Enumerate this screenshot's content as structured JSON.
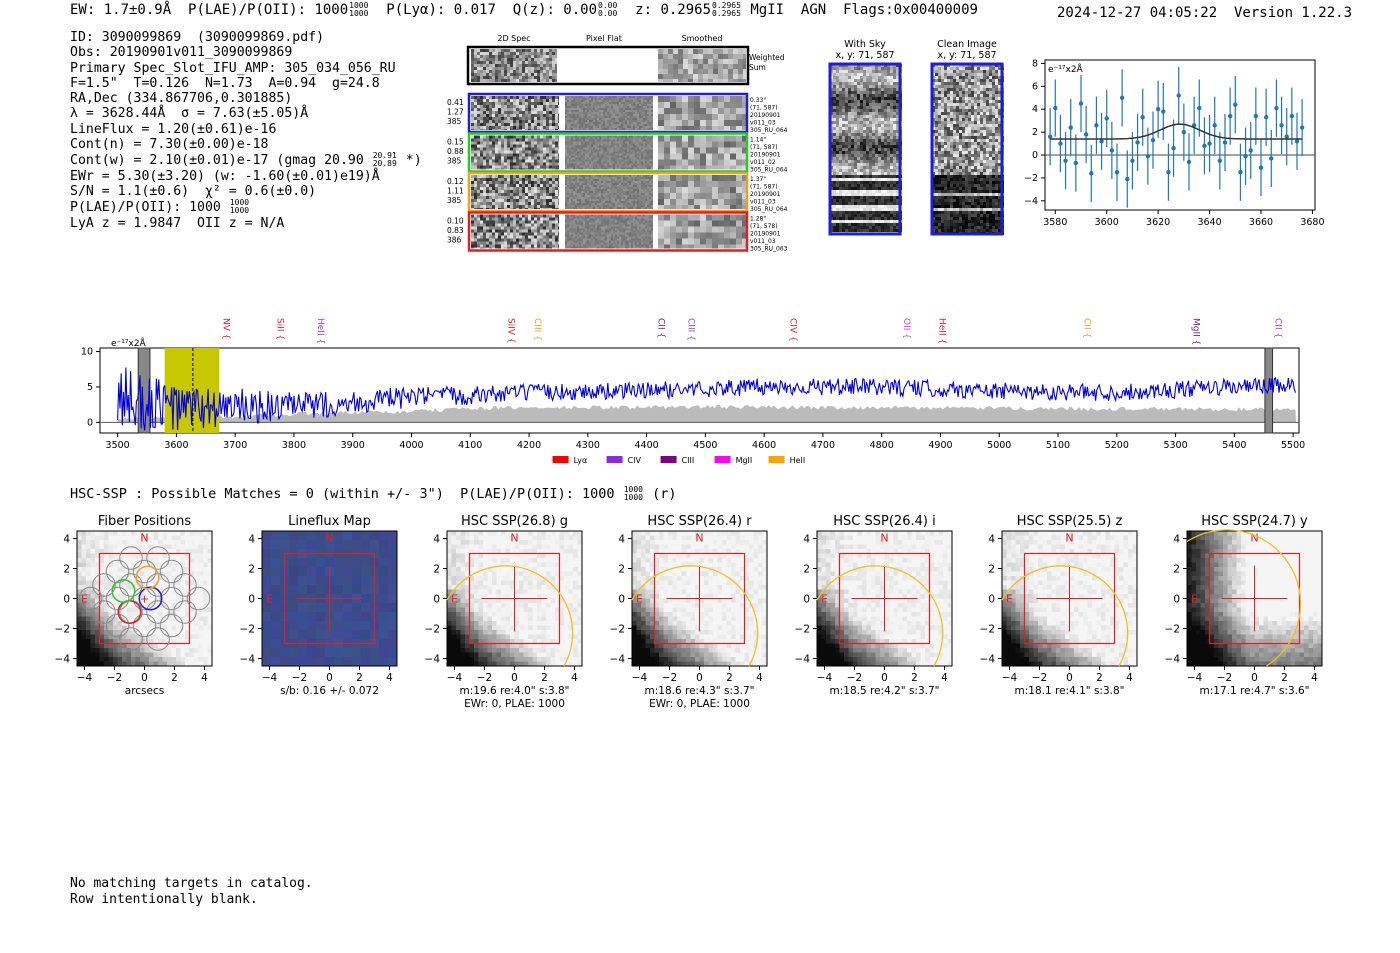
{
  "header": {
    "ew": "EW: 1.7±0.9Å",
    "plae_label": "P(LAE)/P(OII): 1000",
    "plae_hi": "1000",
    "plae_lo": "1000",
    "plya": "P(Lyα): 0.017",
    "qz": "Q(z): 0.00",
    "qz_hi": "0.00",
    "qz_lo": "0.00",
    "z": "z: 0.2965",
    "z_hi": "0.2965",
    "z_lo": "0.2965",
    "tags": "MgII  AGN  Flags:0x00400009",
    "timestamp": "2024-12-27 04:05:22  Version 1.22.3"
  },
  "info": {
    "id": "ID: 3090099869  (3090099869.pdf)",
    "obs": "Obs: 20190901v011_3090099869",
    "slot": "Primary Spec_Slot_IFU_AMP: 305_034_056_RU",
    "params": "F=1.5\"  T=0.126  N=1.73  A=0.94  g=24.8",
    "radec": "RA,Dec (334.867706,0.301885)",
    "lambda": "λ = 3628.44Å  σ = 7.63(±5.05)Å",
    "lineflux": "LineFlux = 1.20(±0.61)e-16",
    "contn": "Cont(n) = 7.30(±0.00)e-18",
    "contw": "Cont(w) = 2.10(±0.01)e-17 (gmag 20.90",
    "gmag_hi": "20.91",
    "gmag_lo": "20.89",
    "contw_end": "*)",
    "ewr": "EWr = 5.30(±3.20) (w: -1.60(±0.01)e19)Å",
    "sn": "S/N = 1.1(±0.6)  χ² = 0.6(±0.0)",
    "plae": "P(LAE)/P(OII): 1000",
    "plae_hi": "1000",
    "plae_lo": "1000",
    "lya_z": "LyA z = 1.9847  OII z = N/A"
  },
  "cutouts": {
    "col_labels": [
      "2D Spec",
      "Pixel Flat",
      "Smoothed"
    ],
    "weighted_label": "Weighted Sum",
    "colors": [
      "#000000",
      "#1f1fd0",
      "#22cc22",
      "#f0a020",
      "#e02020"
    ],
    "rows": [
      {
        "left": [
          "0.41",
          "1.27",
          "385"
        ],
        "right": [
          "0.33\"",
          "(71, 587)",
          "20190901",
          "v011_03",
          "305_RU_064"
        ]
      },
      {
        "left": [
          "0.15",
          "0.88",
          "385"
        ],
        "right": [
          "1.14\"",
          "(71, 587)",
          "20190901",
          "v011_02",
          "305_RU_064"
        ]
      },
      {
        "left": [
          "0.12",
          "1.11",
          "385"
        ],
        "right": [
          "1.37\"",
          "(71, 587)",
          "20190901",
          "v011_03",
          "305_RU_064"
        ]
      },
      {
        "left": [
          "0.10",
          "0.83",
          "386"
        ],
        "right": [
          "1.28\"",
          "(71, 578)",
          "20190901",
          "v011_03",
          "305_RU_063"
        ]
      }
    ],
    "with_sky": {
      "title": "With Sky",
      "xy": "x, y: 71, 587"
    },
    "clean": {
      "title": "Clean Image",
      "xy": "x, y: 71, 587"
    }
  },
  "hsc": {
    "line": "HSC-SSP : Possible Matches = 0 (within +/- 3\")  P(LAE)/P(OII): 1000",
    "plae_hi": "1000",
    "plae_lo": "1000",
    "band": "(r)"
  },
  "footer": {
    "line1": "No matching targets in catalog.",
    "line2": "Row intentionally blank."
  },
  "chart_data": [
    {
      "type": "line",
      "id": "line-fit",
      "title": "",
      "ylabel_note": "e⁻¹⁷x2Å",
      "xlim": [
        3576,
        3681
      ],
      "ylim": [
        -4.8,
        8.3
      ],
      "xticks": [
        3580,
        3600,
        3620,
        3640,
        3660,
        3680
      ],
      "yticks": [
        -4,
        -2,
        0,
        2,
        4,
        6,
        8
      ],
      "series": [
        {
          "name": "data",
          "x": [
            3578,
            3580,
            3582,
            3584,
            3586,
            3588,
            3590,
            3592,
            3594,
            3596,
            3598,
            3600,
            3602,
            3604,
            3606,
            3608,
            3610,
            3612,
            3614,
            3616,
            3618,
            3620,
            3622,
            3624,
            3626,
            3628,
            3630,
            3632,
            3634,
            3636,
            3638,
            3640,
            3642,
            3644,
            3646,
            3648,
            3650,
            3652,
            3654,
            3656,
            3658,
            3660,
            3662,
            3664,
            3666,
            3668,
            3670,
            3672,
            3674,
            3676
          ],
          "values": [
            1.6,
            4.1,
            1.0,
            -0.5,
            2.4,
            -0.7,
            4.5,
            1.8,
            -1.6,
            2.6,
            1.2,
            3.2,
            0.4,
            -1.5,
            5.0,
            -2.1,
            -0.5,
            1.1,
            3.3,
            -0.1,
            1.3,
            4.0,
            3.8,
            -1.5,
            0.6,
            5.2,
            2.0,
            -0.6,
            2.6,
            4.1,
            0.8,
            1.0,
            2.6,
            -0.5,
            1.1,
            3.4,
            4.4,
            -1.5,
            -0.1,
            0.4,
            3.4,
            -1.1,
            3.3,
            -0.3,
            4.1,
            2.6,
            1.6,
            3.4,
            1.2,
            2.4
          ],
          "err": [
            2.5,
            2.5,
            2.5,
            2.5,
            2.5,
            2.5,
            2.5,
            2.5,
            2.5,
            2.5,
            2.5,
            2.5,
            2.5,
            2.5,
            2.5,
            2.5,
            2.5,
            2.5,
            2.5,
            2.5,
            2.5,
            2.5,
            2.5,
            2.5,
            2.5,
            2.5,
            2.5,
            2.5,
            2.5,
            2.5,
            2.5,
            2.5,
            2.5,
            2.5,
            2.5,
            2.5,
            2.5,
            2.5,
            2.5,
            2.5,
            2.5,
            2.5,
            2.5,
            2.5,
            2.5,
            2.5,
            2.5,
            2.5,
            2.5,
            2.5
          ]
        },
        {
          "name": "fit",
          "continuum": 1.4,
          "amplitude": 1.3,
          "center": 3628.44,
          "sigma": 7.63
        }
      ]
    },
    {
      "type": "line",
      "id": "full-spectrum",
      "ylabel_note": "e⁻¹⁷x2Å",
      "xlim": [
        3470,
        5510
      ],
      "ylim": [
        -1.5,
        10.5
      ],
      "xticks": [
        3500,
        3600,
        3700,
        3800,
        3900,
        4000,
        4100,
        4200,
        4300,
        4400,
        4500,
        4600,
        4700,
        4800,
        4900,
        5000,
        5100,
        5200,
        5300,
        5400,
        5500
      ],
      "yticks": [
        0,
        5,
        10
      ],
      "highlight_band": [
        3580,
        3673
      ],
      "highlight_line": 3628,
      "masked_bands": [
        [
          3535,
          3555
        ],
        [
          5452,
          5465
        ]
      ],
      "line_markers": [
        {
          "label": "NV",
          "x": 3675,
          "color": "#e02020"
        },
        {
          "label": "SiII",
          "x": 3767,
          "color": "#e02020"
        },
        {
          "label": "HeII",
          "x": 3836,
          "color": "#a040e0"
        },
        {
          "label": "SiIV",
          "x": 4160,
          "color": "#e02020"
        },
        {
          "label": "CIII",
          "x": 4205,
          "color": "#f0a020"
        },
        {
          "label": "CII",
          "x": 4415,
          "color": "#7020a0"
        },
        {
          "label": "CIII",
          "x": 4466,
          "color": "#a040e0"
        },
        {
          "label": "CIV",
          "x": 4640,
          "color": "#e02020"
        },
        {
          "label": "OII",
          "x": 4833,
          "color": "#e040e0"
        },
        {
          "label": "HeII",
          "x": 4893,
          "color": "#e02020"
        },
        {
          "label": "CII",
          "x": 5140,
          "color": "#f0a020"
        },
        {
          "label": "MgII",
          "x": 5325,
          "color": "#7020a0"
        },
        {
          "label": "CII",
          "x": 5465,
          "color": "#a040e0"
        }
      ],
      "legend": [
        {
          "label": "Lyα",
          "color": "#ff0000"
        },
        {
          "label": "CIV",
          "color": "#8a2be2"
        },
        {
          "label": "CIII",
          "color": "#800080"
        },
        {
          "label": "MgII",
          "color": "#ff00ff"
        },
        {
          "label": "HeII",
          "color": "#ffa500"
        }
      ],
      "series": [
        {
          "name": "flux",
          "color": "#0000dd",
          "x_start": 3500,
          "x_end": 5505,
          "step": 2,
          "envelope": [
            [
              3500,
              3.5
            ],
            [
              3600,
              2.0
            ],
            [
              3800,
              2.2
            ],
            [
              4000,
              3.5
            ],
            [
              4200,
              4.2
            ],
            [
              4400,
              4.5
            ],
            [
              4600,
              5.0
            ],
            [
              4800,
              5.0
            ],
            [
              5000,
              4.4
            ],
            [
              5200,
              4.2
            ],
            [
              5400,
              5.0
            ],
            [
              5505,
              5.2
            ]
          ],
          "noise_amp": [
            [
              3500,
              5.0
            ],
            [
              3600,
              3.5
            ],
            [
              3800,
              2.0
            ],
            [
              4000,
              1.5
            ],
            [
              4200,
              1.2
            ],
            [
              5505,
              1.2
            ]
          ]
        },
        {
          "name": "sky",
          "color": "#bbbbbb",
          "level": [
            [
              3500,
              0.5
            ],
            [
              3650,
              0.6
            ],
            [
              3800,
              1.2
            ],
            [
              4000,
              1.5
            ],
            [
              4100,
              2.0
            ],
            [
              4500,
              2.2
            ],
            [
              5000,
              2.0
            ],
            [
              5500,
              1.8
            ]
          ]
        }
      ]
    },
    {
      "type": "heatmap",
      "id": "hsc-panels",
      "xlim": [
        -4.5,
        4.5
      ],
      "ylim": [
        -4.5,
        4.5
      ],
      "ticks": [
        -4,
        -2,
        0,
        2,
        4
      ],
      "panels": [
        {
          "title": "Fiber Positions",
          "labels": [
            "arcsecs"
          ]
        },
        {
          "title": "Lineflux Map",
          "labels": [
            "s/b: 0.16 +/- 0.072"
          ]
        },
        {
          "title": "HSC SSP(26.8) g",
          "labels": [
            "m:19.6  re:4.0\"  s:3.8\"",
            "EWr: 0, PLAE: 1000"
          ]
        },
        {
          "title": "HSC SSP(26.4) r",
          "labels": [
            "m:18.6  re:4.3\"  s:3.7\"",
            "EWr: 0, PLAE: 1000"
          ]
        },
        {
          "title": "HSC SSP(26.4) i",
          "labels": [
            "m:18.5  re:4.2\"  s:3.7\""
          ]
        },
        {
          "title": "HSC SSP(25.5) z",
          "labels": [
            "m:18.1  re:4.1\"  s:3.8\""
          ]
        },
        {
          "title": "HSC SSP(24.7) y",
          "labels": [
            "m:17.1  re:4.7\"  s:3.6\""
          ]
        }
      ],
      "compass": {
        "north": "N",
        "east": "E"
      }
    }
  ]
}
